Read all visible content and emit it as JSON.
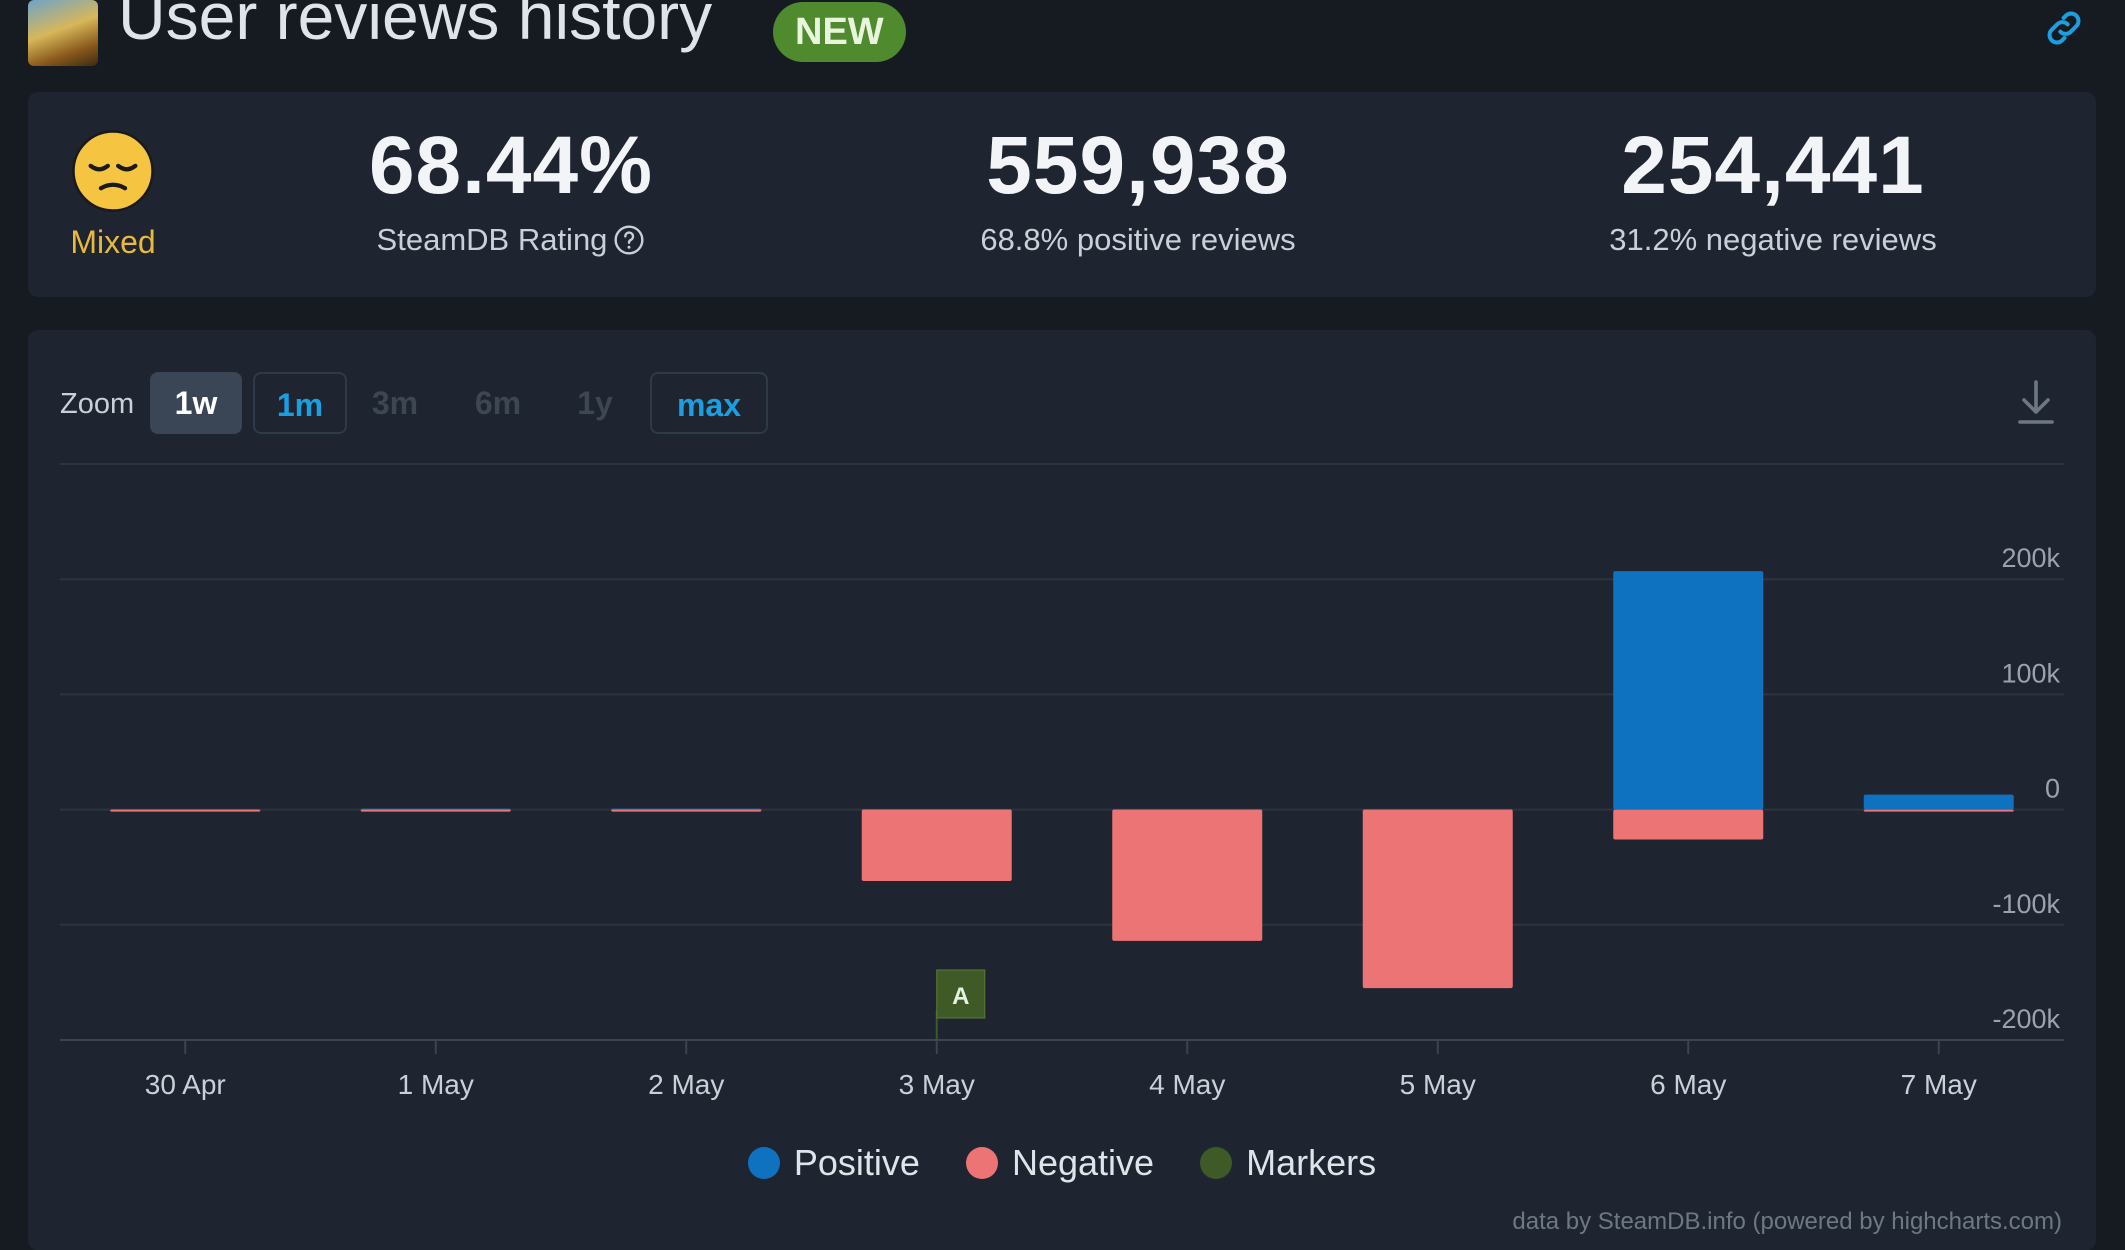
{
  "header": {
    "title": "User reviews history",
    "badge": "NEW",
    "icons": {
      "game": "game-thumbnail-icon",
      "link": "link-icon"
    }
  },
  "stats": {
    "rating_word": "Mixed",
    "rating_icon": "pensive-face-icon",
    "rating_percent": "68.44%",
    "rating_label": "SteamDB Rating",
    "positive_count": "559,938",
    "positive_label": "68.8% positive reviews",
    "negative_count": "254,441",
    "negative_label": "31.2% negative reviews"
  },
  "zoom": {
    "label": "Zoom",
    "options": [
      {
        "label": "1w",
        "state": "selected"
      },
      {
        "label": "1m",
        "state": "active"
      },
      {
        "label": "3m",
        "state": "disabled"
      },
      {
        "label": "6m",
        "state": "disabled"
      },
      {
        "label": "1y",
        "state": "disabled"
      },
      {
        "label": "max",
        "state": "active"
      }
    ]
  },
  "colors": {
    "positive": "#0f72c0",
    "negative": "#ec7474",
    "markers": "#3f5a26",
    "accent": "#1b9fe0",
    "rating": "#e9b93c"
  },
  "chart_data": {
    "type": "bar",
    "stacked": true,
    "categories": [
      "30 Apr",
      "1 May",
      "2 May",
      "3 May",
      "4 May",
      "5 May",
      "6 May",
      "7 May"
    ],
    "series": [
      {
        "name": "Positive",
        "color": "#0f72c0",
        "values": [
          200,
          800,
          900,
          300,
          200,
          200,
          207000,
          13000
        ]
      },
      {
        "name": "Negative",
        "color": "#ec7474",
        "values": [
          -600,
          -300,
          -400,
          -62000,
          -114000,
          -155000,
          -26000,
          -900
        ]
      }
    ],
    "markers": [
      {
        "category": "3 May",
        "label": "A"
      }
    ],
    "legend": [
      "Positive",
      "Negative",
      "Markers"
    ],
    "ylim": [
      -200000,
      300000
    ],
    "yticks": [
      {
        "value": 200000,
        "label": "200k"
      },
      {
        "value": 100000,
        "label": "100k"
      },
      {
        "value": 0,
        "label": "0"
      },
      {
        "value": -100000,
        "label": "-100k"
      },
      {
        "value": -200000,
        "label": "-200k"
      }
    ],
    "grid": true,
    "legend_position": "bottom-center",
    "credits": "data by SteamDB.info (powered by highcharts.com)"
  }
}
